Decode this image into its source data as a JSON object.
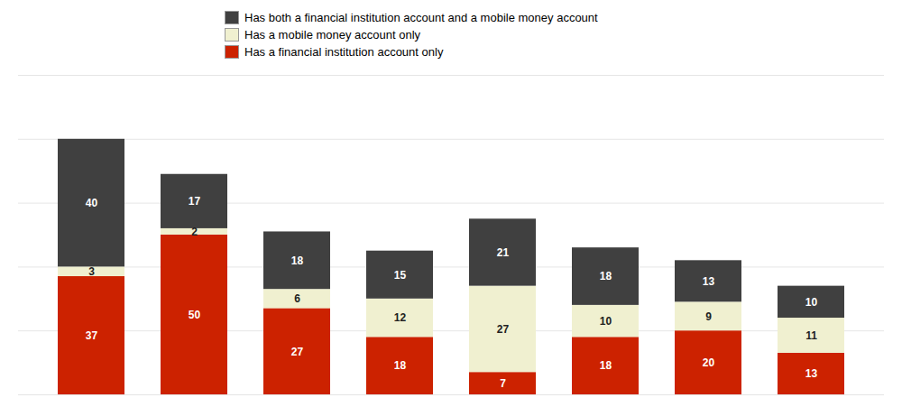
{
  "chart_data": {
    "type": "bar",
    "stacked": true,
    "categories": [
      null,
      null,
      null,
      null,
      null,
      null,
      null,
      null
    ],
    "series": [
      {
        "name": "Has a financial institution account only",
        "color": "#cc2200",
        "values": [
          37,
          50,
          27,
          18,
          7,
          18,
          20,
          13
        ]
      },
      {
        "name": "Has a mobile money account only",
        "color": "#f0f0d0",
        "values": [
          3,
          2,
          6,
          12,
          27,
          10,
          9,
          11
        ]
      },
      {
        "name": "Has both a financial institution account and a mobile money account",
        "color": "#404040",
        "values": [
          40,
          17,
          18,
          15,
          21,
          18,
          13,
          10
        ]
      }
    ],
    "ylim": [
      0,
      100
    ],
    "yticks": [
      0,
      20,
      40,
      60,
      80,
      100
    ],
    "grid": true,
    "data_labels": true,
    "tick_labels": false,
    "legend": "top"
  }
}
